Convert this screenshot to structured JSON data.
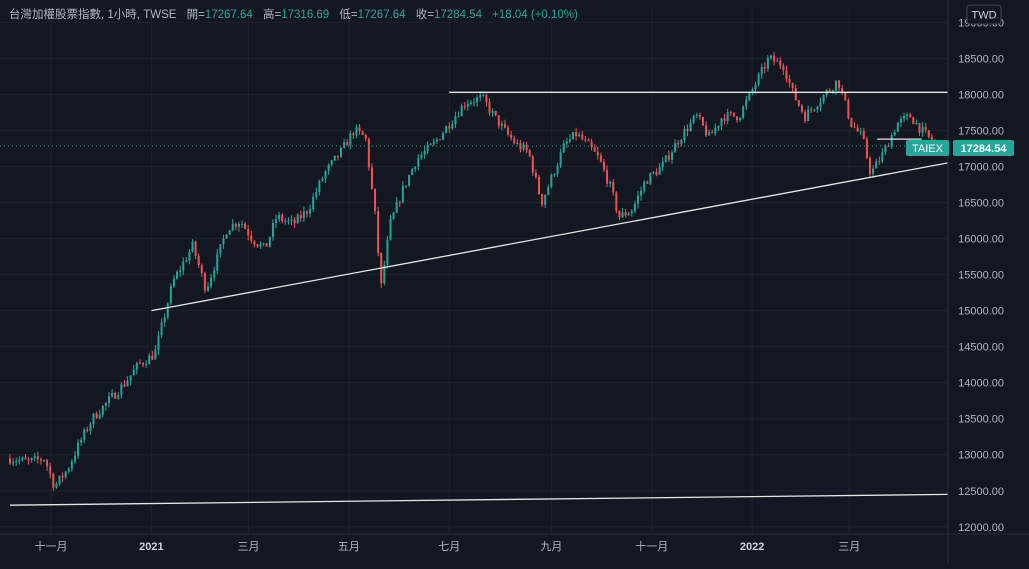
{
  "header": {
    "symbol_name": "台灣加權股票指數",
    "interval": "1小時",
    "exchange": "TWSE",
    "open_label": "開",
    "open_value": "17267.64",
    "high_label": "高",
    "high_value": "17316.69",
    "low_label": "低",
    "low_value": "17267.64",
    "close_label": "收",
    "close_value": "17284.54",
    "change": "+18.04 (+0.10%)"
  },
  "currency": "TWD",
  "price_label": {
    "ticker": "TAIEX",
    "value": "17284.54"
  },
  "colors": {
    "background": "#131722",
    "up": "#26a69a",
    "down": "#ef5350",
    "trendline": "#e6e6e6",
    "text": "#b2b5be",
    "label_bg": "#26a69a"
  },
  "chart_data": {
    "type": "candlestick",
    "currency": "TWD",
    "y_axis_ticks": [
      "19000.00",
      "18500.00",
      "18000.00",
      "17500.00",
      "17000.00",
      "16500.00",
      "16000.00",
      "15500.00",
      "15000.00",
      "14500.00",
      "14000.00",
      "13500.00",
      "13000.00",
      "12500.00",
      "12000.00"
    ],
    "ylim": [
      11900,
      19200
    ],
    "x_axis_ticks": [
      "十一月",
      "2021",
      "三月",
      "五月",
      "七月",
      "九月",
      "十一月",
      "2022",
      "三月"
    ],
    "x_range": [
      "2020-10-01",
      "2022-04-30"
    ],
    "last_price": 17284.54,
    "price_path": [
      [
        "2020-10-01",
        12950
      ],
      [
        "2020-10-12",
        12900
      ],
      [
        "2020-10-22",
        12950
      ],
      [
        "2020-10-28",
        12560
      ],
      [
        "2020-11-05",
        12800
      ],
      [
        "2020-11-12",
        13150
      ],
      [
        "2020-11-20",
        13500
      ],
      [
        "2020-11-30",
        13750
      ],
      [
        "2020-12-10",
        14000
      ],
      [
        "2020-12-18",
        14250
      ],
      [
        "2020-12-28",
        14400
      ],
      [
        "2021-01-08",
        15400
      ],
      [
        "2021-01-20",
        15900
      ],
      [
        "2021-01-28",
        15300
      ],
      [
        "2021-02-05",
        15800
      ],
      [
        "2021-02-10",
        16150
      ],
      [
        "2021-02-18",
        16250
      ],
      [
        "2021-02-25",
        16000
      ],
      [
        "2021-03-05",
        15850
      ],
      [
        "2021-03-12",
        16300
      ],
      [
        "2021-03-22",
        16200
      ],
      [
        "2021-03-31",
        16400
      ],
      [
        "2021-04-10",
        16900
      ],
      [
        "2021-04-20",
        17200
      ],
      [
        "2021-04-28",
        17500
      ],
      [
        "2021-05-05",
        17400
      ],
      [
        "2021-05-12",
        16100
      ],
      [
        "2021-05-14",
        15250
      ],
      [
        "2021-05-20",
        16200
      ],
      [
        "2021-05-28",
        16700
      ],
      [
        "2021-06-05",
        17100
      ],
      [
        "2021-06-15",
        17300
      ],
      [
        "2021-06-25",
        17600
      ],
      [
        "2021-07-05",
        17900
      ],
      [
        "2021-07-15",
        17950
      ],
      [
        "2021-07-22",
        17700
      ],
      [
        "2021-07-30",
        17450
      ],
      [
        "2021-08-05",
        17300
      ],
      [
        "2021-08-12",
        17200
      ],
      [
        "2021-08-20",
        16500
      ],
      [
        "2021-08-27",
        16900
      ],
      [
        "2021-09-03",
        17300
      ],
      [
        "2021-09-10",
        17450
      ],
      [
        "2021-09-17",
        17300
      ],
      [
        "2021-09-24",
        17100
      ],
      [
        "2021-10-01",
        16700
      ],
      [
        "2021-10-06",
        16300
      ],
      [
        "2021-10-14",
        16400
      ],
      [
        "2021-10-22",
        16800
      ],
      [
        "2021-11-01",
        17000
      ],
      [
        "2021-11-12",
        17400
      ],
      [
        "2021-11-22",
        17700
      ],
      [
        "2021-11-30",
        17400
      ],
      [
        "2021-12-08",
        17700
      ],
      [
        "2021-12-18",
        17700
      ],
      [
        "2021-12-28",
        18150
      ],
      [
        "2022-01-05",
        18500
      ],
      [
        "2022-01-14",
        18400
      ],
      [
        "2022-01-20",
        18000
      ],
      [
        "2022-01-27",
        17700
      ],
      [
        "2022-02-08",
        18000
      ],
      [
        "2022-02-16",
        18200
      ],
      [
        "2022-02-24",
        17600
      ],
      [
        "2022-03-03",
        17400
      ],
      [
        "2022-03-08",
        16900
      ],
      [
        "2022-03-16",
        17200
      ],
      [
        "2022-03-24",
        17600
      ],
      [
        "2022-04-01",
        17700
      ],
      [
        "2022-04-08",
        17500
      ],
      [
        "2022-04-14",
        17350
      ],
      [
        "2022-04-16",
        17284.54
      ]
    ],
    "trendlines": [
      {
        "from": [
          "2021-01-01",
          15000
        ],
        "to": [
          "2022-04-30",
          17050
        ]
      },
      {
        "from": [
          "2021-07-01",
          18030
        ],
        "to": [
          "2022-04-30",
          18030
        ]
      },
      {
        "from": [
          "2020-10-01",
          12300
        ],
        "to": [
          "2022-04-30",
          12450
        ]
      },
      {
        "from": [
          "2022-03-18",
          17380
        ],
        "to": [
          "2022-04-14",
          17380
        ]
      }
    ],
    "last_price_line": "dotted"
  }
}
